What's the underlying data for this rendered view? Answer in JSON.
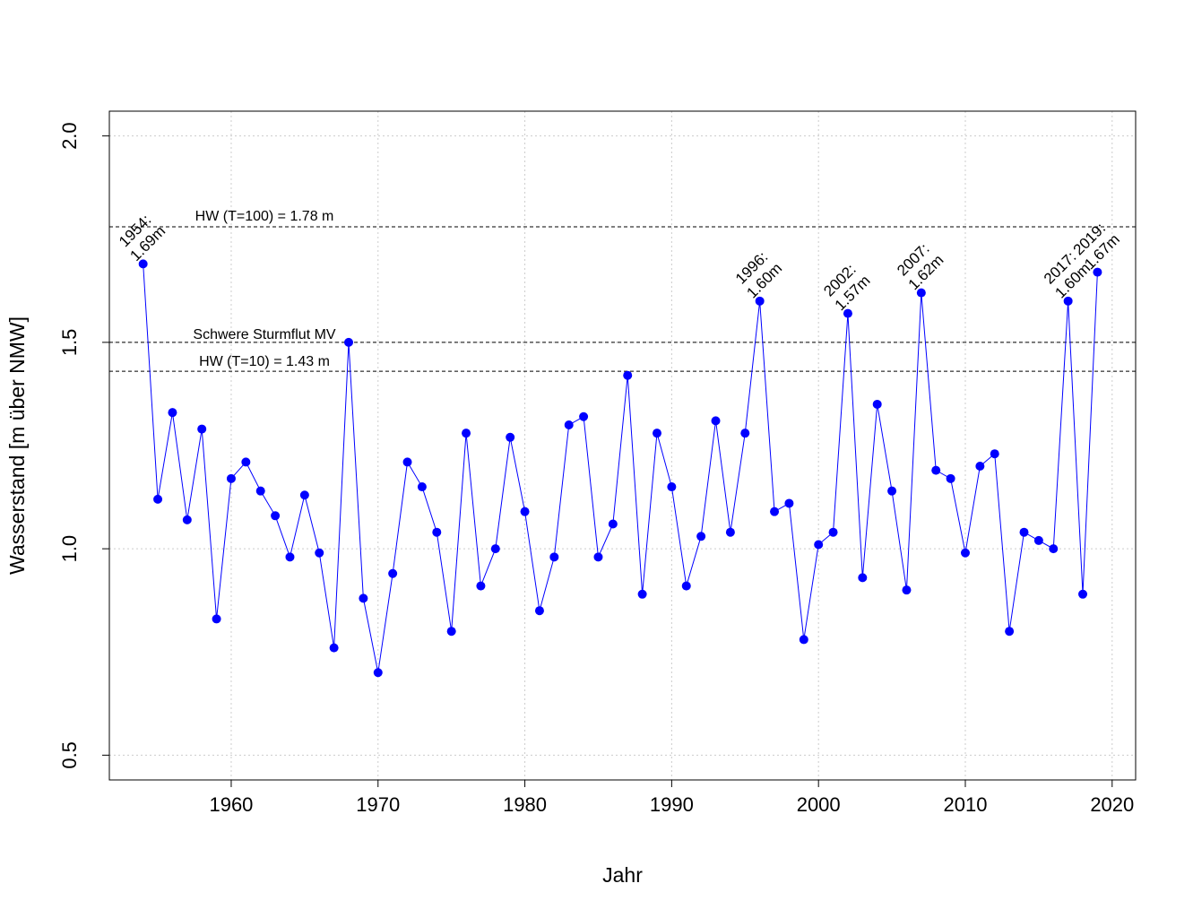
{
  "chart_data": {
    "type": "line",
    "xlabel": "Jahr",
    "ylabel": "Wasserstand [m über NMW]",
    "xlim": [
      1951.7,
      2021.6
    ],
    "ylim": [
      0.44,
      2.06
    ],
    "xticks": [
      "1960",
      "1970",
      "1980",
      "1990",
      "2000",
      "2010",
      "2020"
    ],
    "yticks": [
      "0.5",
      "1.0",
      "1.5",
      "2.0"
    ],
    "grid": true,
    "colors": {
      "series": "#0000ff",
      "points": "#0000ff",
      "grid": "#cccccc",
      "reference": "#000000"
    },
    "series": [
      {
        "x": [
          1954,
          1955,
          1956,
          1957,
          1958,
          1959,
          1960,
          1961,
          1962,
          1963,
          1964,
          1965,
          1966,
          1967,
          1968,
          1969,
          1970,
          1971,
          1972,
          1973,
          1974,
          1975,
          1976,
          1977,
          1978,
          1979,
          1980,
          1981,
          1982,
          1983,
          1984,
          1985,
          1986,
          1987,
          1988,
          1989,
          1990,
          1991,
          1992,
          1993,
          1994,
          1995,
          1996,
          1997,
          1998,
          1999,
          2000,
          2001,
          2002,
          2003,
          2004,
          2005,
          2006,
          2007,
          2008,
          2009,
          2010,
          2011,
          2012,
          2013,
          2014,
          2015,
          2016,
          2017,
          2018,
          2019
        ],
        "y": [
          1.69,
          1.12,
          1.33,
          1.07,
          1.29,
          0.83,
          1.17,
          1.21,
          1.14,
          1.08,
          0.98,
          1.13,
          0.99,
          0.76,
          1.5,
          0.88,
          0.7,
          0.94,
          1.21,
          1.15,
          1.04,
          0.8,
          1.28,
          0.91,
          1.0,
          1.27,
          1.09,
          0.85,
          0.98,
          1.3,
          1.32,
          0.98,
          1.06,
          1.42,
          0.89,
          1.28,
          1.15,
          0.91,
          1.03,
          1.31,
          1.04,
          1.28,
          1.6,
          1.09,
          1.11,
          0.78,
          1.01,
          1.04,
          1.57,
          0.93,
          1.35,
          1.14,
          0.9,
          1.62,
          1.19,
          1.17,
          0.99,
          1.2,
          1.23,
          0.8,
          1.04,
          1.02,
          1.0,
          1.6,
          0.89,
          1.67
        ]
      }
    ],
    "reference_lines": [
      {
        "y": 1.78,
        "label": "HW (T=100) = 1.78 m"
      },
      {
        "y": 1.5,
        "label": "Schwere Sturmflut MV"
      },
      {
        "y": 1.43,
        "label": "HW (T=10) = 1.43 m"
      }
    ],
    "annotations": [
      {
        "x": 1954,
        "y": 1.69,
        "line1": "1954:",
        "line2": "1.69m"
      },
      {
        "x": 1996,
        "y": 1.6,
        "line1": "1996:",
        "line2": "1.60m"
      },
      {
        "x": 2002,
        "y": 1.57,
        "line1": "2002:",
        "line2": "1.57m"
      },
      {
        "x": 2007,
        "y": 1.62,
        "line1": "2007:",
        "line2": "1.62m"
      },
      {
        "x": 2017,
        "y": 1.6,
        "line1": "2017:",
        "line2": "1.60m"
      },
      {
        "x": 2019,
        "y": 1.67,
        "line1": "2019:",
        "line2": "1.67m"
      }
    ]
  }
}
